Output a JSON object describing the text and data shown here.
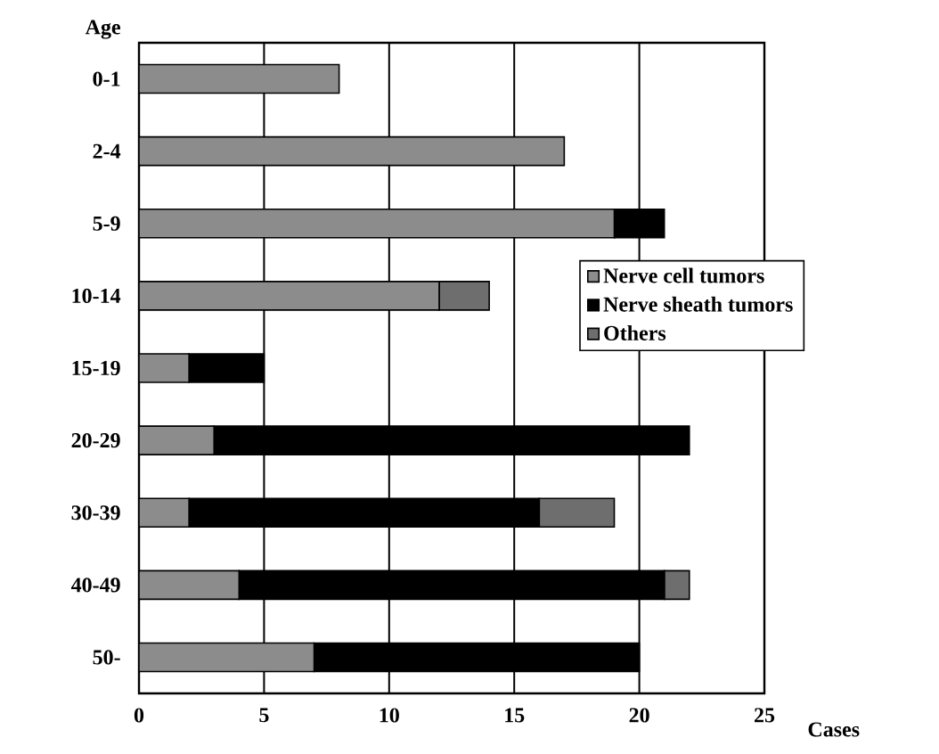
{
  "chart_data": {
    "type": "bar",
    "orientation": "horizontal",
    "stacked": true,
    "xlabel": "Cases",
    "ylabel": "Age",
    "categories": [
      "0-1",
      "2-4",
      "5-9",
      "10-14",
      "15-19",
      "20-29",
      "30-39",
      "40-49",
      "50-"
    ],
    "series": [
      {
        "name": "Nerve cell tumors",
        "color": "#8c8c8c",
        "values": [
          8,
          17,
          19,
          12,
          2,
          3,
          2,
          4,
          7
        ]
      },
      {
        "name": "Nerve sheath tumors",
        "color": "#000000",
        "values": [
          null,
          null,
          2,
          null,
          3,
          19,
          14,
          17,
          13
        ]
      },
      {
        "name": "Others",
        "color": "#6e6e6e",
        "values": [
          null,
          null,
          null,
          2,
          null,
          null,
          3,
          1,
          null
        ]
      }
    ],
    "xlim": [
      0,
      25
    ],
    "xticks": [
      0,
      5,
      10,
      15,
      20,
      25
    ],
    "grid": "x",
    "legend": "right"
  }
}
